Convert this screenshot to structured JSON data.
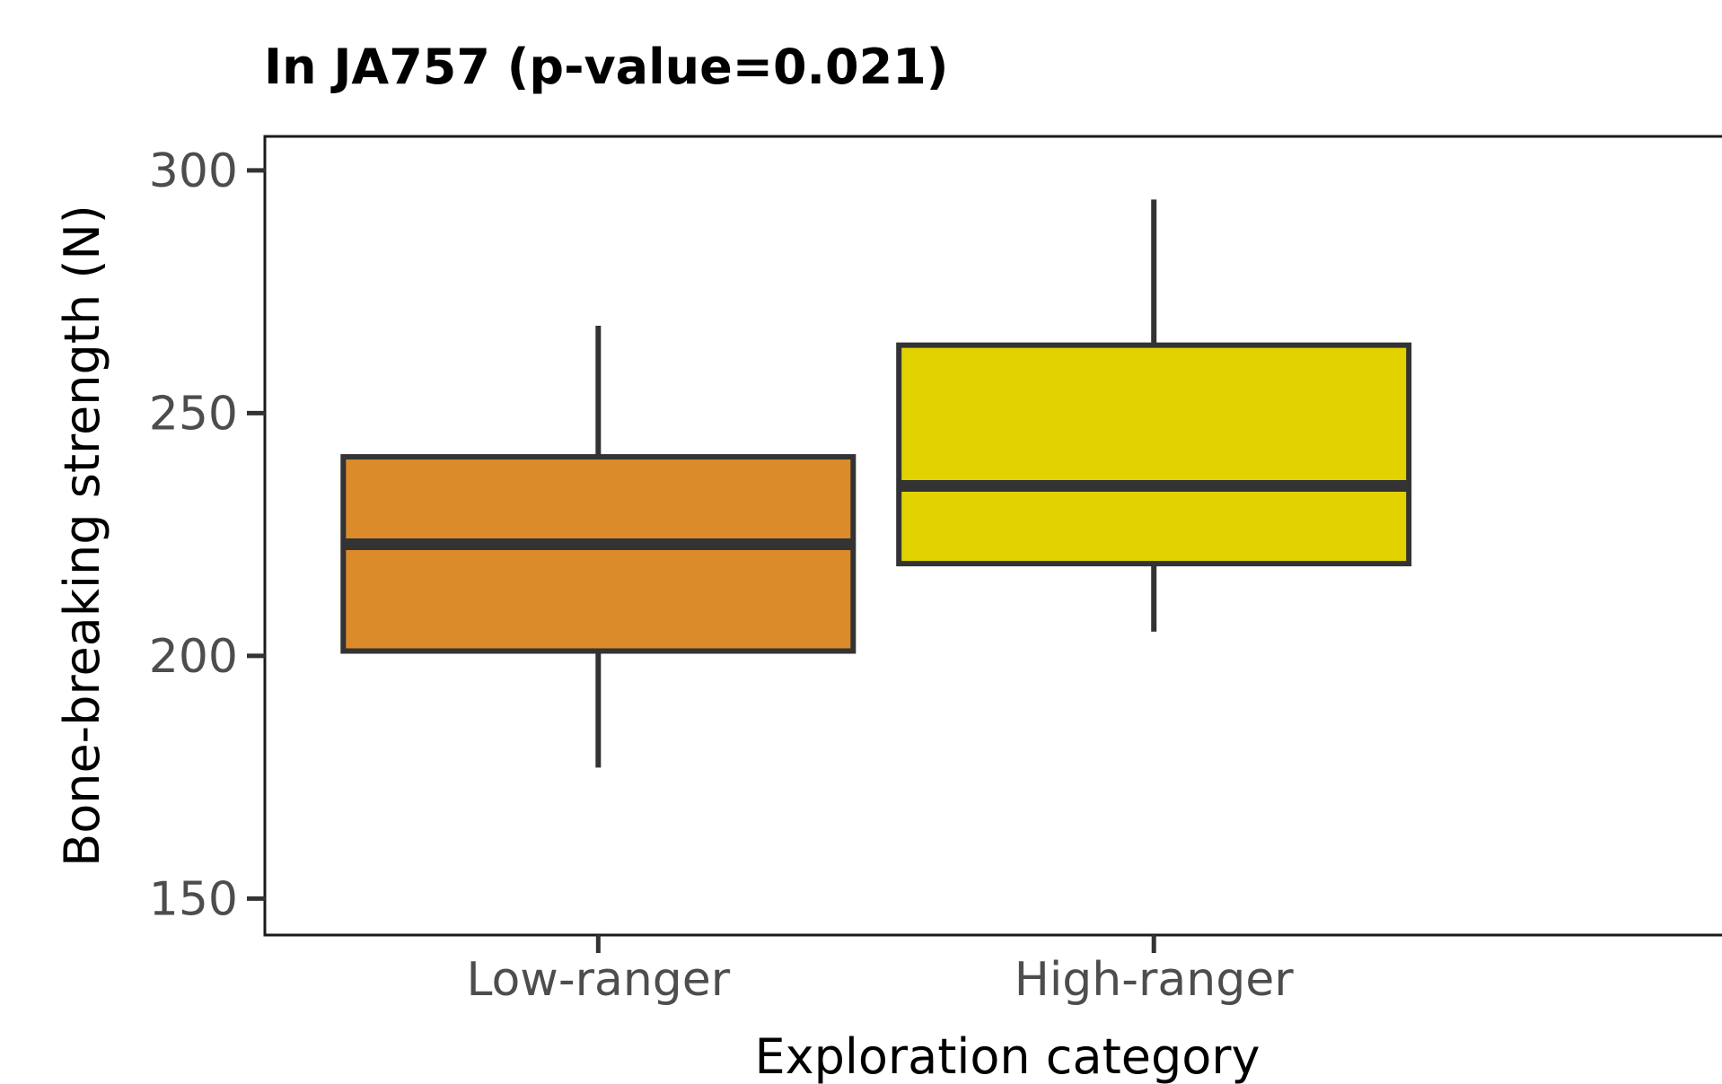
{
  "chart_data": {
    "type": "boxplot",
    "title": "In JA757 (p-value=0.021)",
    "xlabel": "Exploration category",
    "ylabel": "Bone-breaking strength (N)",
    "ylim": [
      142.5,
      307
    ],
    "yticks": [
      150,
      200,
      250,
      300
    ],
    "grid": false,
    "legend": "none",
    "categories": [
      "Low-ranger",
      "High-ranger"
    ],
    "boxes": [
      {
        "category": "Low-ranger",
        "whisker_low": 177,
        "q1": 201,
        "median": 223,
        "q3": 241,
        "whisker_high": 268,
        "color": "#DC8B2A"
      },
      {
        "category": "High-ranger",
        "whisker_low": 205,
        "q1": 219,
        "median": 235,
        "q3": 264,
        "whisker_high": 294,
        "color": "#E2D200"
      }
    ]
  }
}
